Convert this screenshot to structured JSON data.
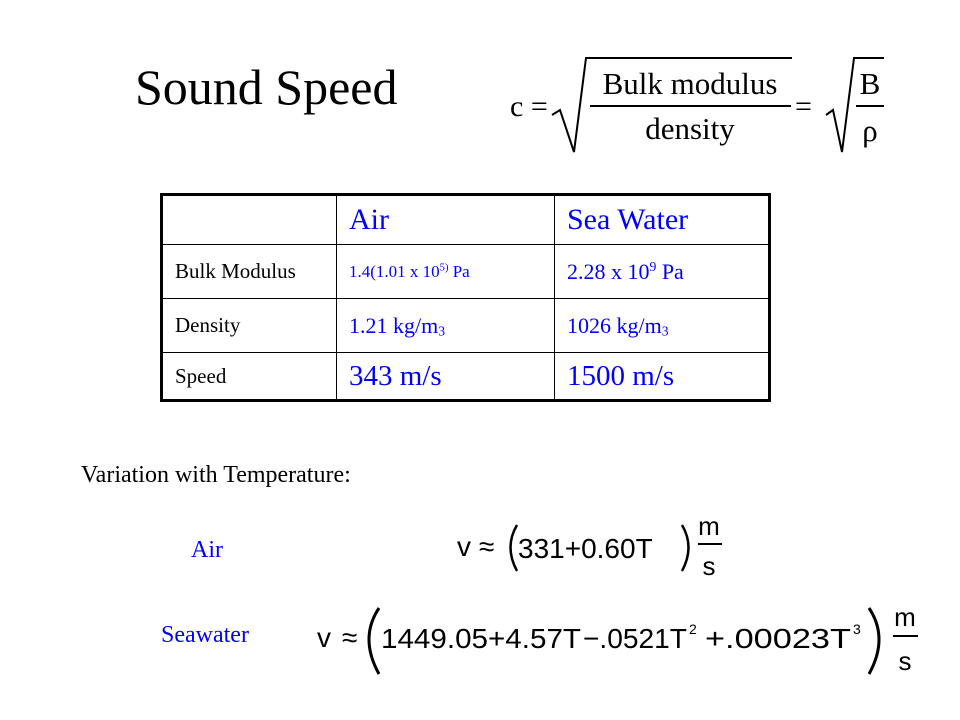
{
  "title": "Sound Speed",
  "formula": {
    "lhs": "c =",
    "numerator": "Bulk modulus",
    "denominator": "density",
    "eq": "=",
    "B": "B",
    "rho": "ρ"
  },
  "table": {
    "headers": [
      "",
      "Air",
      "Sea Water"
    ],
    "rows": [
      {
        "label": "Bulk Modulus",
        "air": {
          "base": "1.4(1.01 x 10",
          "sup": "5)",
          "tail": " Pa"
        },
        "sea": {
          "base": "2.28 x 10",
          "sup": "9",
          "tail": " Pa"
        }
      },
      {
        "label": "Density",
        "air": {
          "base": "1.21 kg/m",
          "sub": "3"
        },
        "sea": {
          "base": "1026 kg/m",
          "sub": "3"
        }
      },
      {
        "label": "Speed",
        "air": "343 m/s",
        "sea": "1500 m/s"
      }
    ]
  },
  "variation_label": "Variation with Temperature:",
  "air_label": "Air",
  "seawater_label": "Seawater",
  "air_formula": {
    "v": "v",
    "approx": "≈",
    "body": "331+0.60T",
    "m": "m",
    "s": "s"
  },
  "sea_formula": {
    "v": "v",
    "approx": "≈",
    "t1": "1449.05+4.57T",
    "t2": "−.0521T",
    "t2_exp": "2",
    "t3": "+.00023T",
    "t3_exp": "3",
    "m": "m",
    "s": "s"
  },
  "colors": {
    "accent": "#0000ff",
    "text": "#000000",
    "background": "#ffffff"
  }
}
